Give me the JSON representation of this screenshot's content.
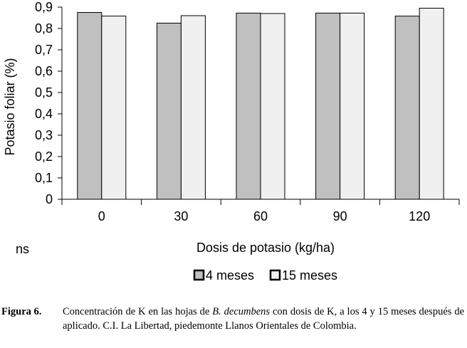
{
  "chart_data": {
    "type": "bar",
    "categories": [
      "0",
      "30",
      "60",
      "90",
      "120"
    ],
    "series": [
      {
        "name": "4 meses",
        "values": [
          0.875,
          0.825,
          0.872,
          0.872,
          0.858
        ],
        "color": "#c0c0c0"
      },
      {
        "name": "15 meses",
        "values": [
          0.858,
          0.86,
          0.87,
          0.872,
          0.895
        ],
        "color": "#f0f0f0"
      }
    ],
    "xlabel": "Dosis de potasio (kg/ha)",
    "ylabel": "Potasio foliar (%)",
    "ylim": [
      0,
      0.9
    ],
    "yticks": [
      "0",
      "0,1",
      "0,2",
      "0,3",
      "0,4",
      "0,5",
      "0,6",
      "0,7",
      "0,8",
      "0,9"
    ],
    "significance_note": "ns",
    "legend_position": "bottom",
    "grid": false
  },
  "caption": {
    "label": "Figura 6.",
    "text_before": "Concentración de K en las hojas de ",
    "species": "B. decumbens",
    "text_after": " con dosis de K, a los 4 y 15 meses después de aplicado. C.I. La Libertad, piedemonte Llanos Orientales de Colombia."
  }
}
